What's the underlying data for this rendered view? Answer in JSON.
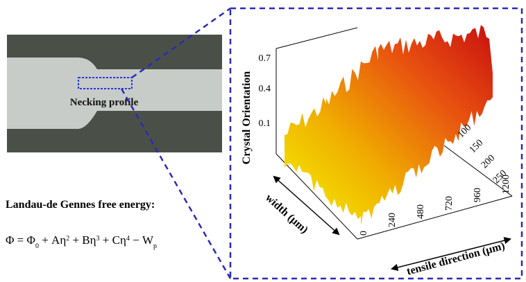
{
  "photo": {
    "label": "Necking profile"
  },
  "energy": {
    "title": "Landau-de Gennes free energy:",
    "formula": [
      "Φ = Φ",
      "0",
      " + Aη",
      "2",
      " + Bη",
      "3",
      " + Cη",
      "4",
      " − W",
      "p"
    ]
  },
  "plot": {
    "z_label": "Crystal Orientation",
    "z_ticks": [
      0.7,
      0.4,
      0.1
    ],
    "width_label": "width (μm)",
    "width_ticks": [
      100,
      150,
      200,
      250
    ],
    "x_label": "tensile direction (μm)",
    "x_ticks": [
      0,
      240,
      480,
      720,
      960,
      1200
    ]
  }
}
